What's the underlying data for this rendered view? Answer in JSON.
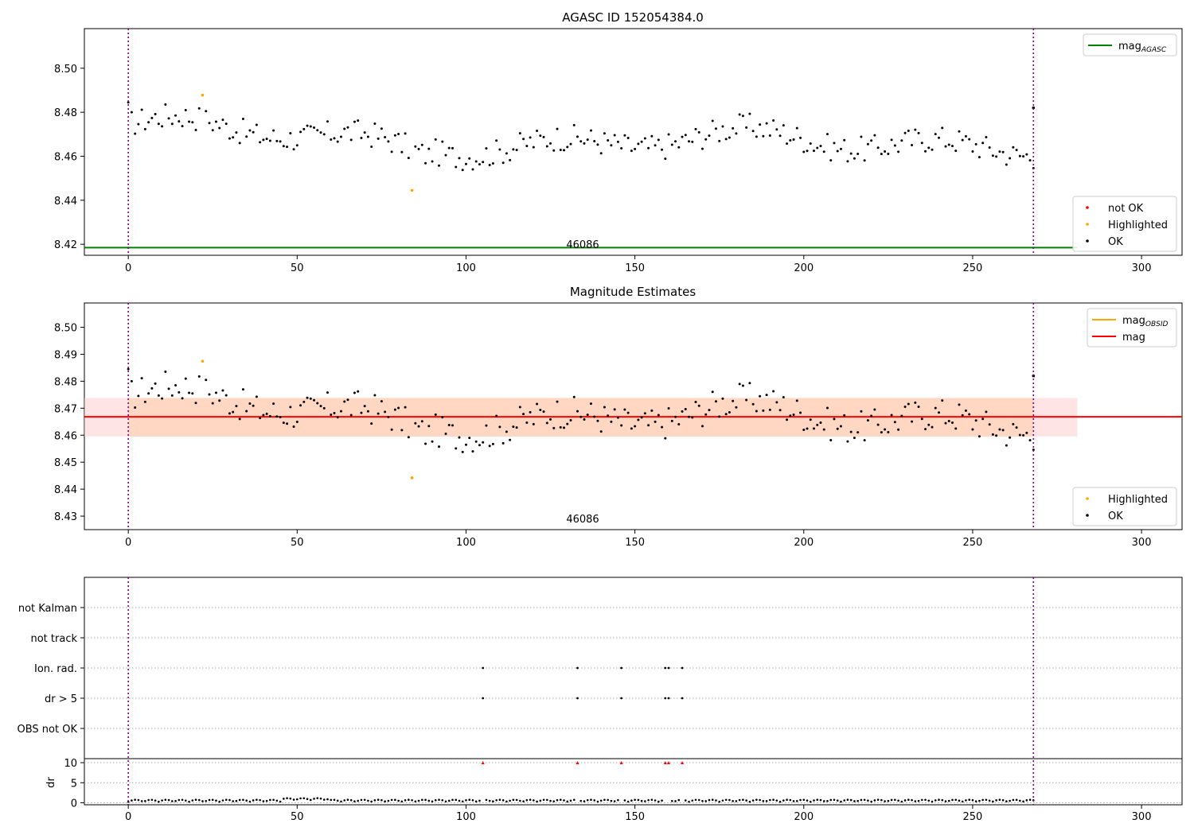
{
  "chart_data": [
    {
      "type": "scatter",
      "title": "AGASC ID 152054384.0",
      "obsid_label": "46086",
      "xlim": [
        -13,
        312
      ],
      "ylim": [
        8.415,
        8.518
      ],
      "xticks": [
        0,
        50,
        100,
        150,
        200,
        250,
        300
      ],
      "yticks": [
        8.42,
        8.44,
        8.46,
        8.48,
        8.5
      ],
      "ytick_labels": [
        "8.42",
        "8.44",
        "8.46",
        "8.48",
        "8.50"
      ],
      "xtick_labels": [
        "0",
        "50",
        "100",
        "150",
        "200",
        "250",
        "300"
      ],
      "vlines": [
        0,
        268
      ],
      "hline": {
        "name": "mag_AGASC",
        "value": 8.4185,
        "color": "#008000"
      },
      "legend_top": [
        {
          "label": "mag",
          "sub": "AGASC",
          "color": "#008000",
          "marker": "line"
        }
      ],
      "legend_bottom": [
        {
          "label": "not OK",
          "color": "#ff0000",
          "marker": "dot"
        },
        {
          "label": "Highlighted",
          "color": "#ffa500",
          "marker": "dot"
        },
        {
          "label": "OK",
          "color": "#000000",
          "marker": "dot"
        }
      ],
      "series": [
        {
          "name": "OK",
          "color": "#000000"
        },
        {
          "name": "Highlighted",
          "color": "#ffa500",
          "points": [
            [
              22,
              8.4878
            ],
            [
              84,
              8.4445
            ]
          ]
        }
      ]
    },
    {
      "type": "scatter",
      "title": "Magnitude Estimates",
      "obsid_label": "46086",
      "xlim": [
        -13,
        312
      ],
      "ylim": [
        8.425,
        8.509
      ],
      "xticks": [
        0,
        50,
        100,
        150,
        200,
        250,
        300
      ],
      "yticks": [
        8.43,
        8.44,
        8.45,
        8.46,
        8.47,
        8.48,
        8.49,
        8.5
      ],
      "ytick_labels": [
        "8.43",
        "8.44",
        "8.45",
        "8.46",
        "8.47",
        "8.48",
        "8.49",
        "8.50"
      ],
      "xtick_labels": [
        "0",
        "50",
        "100",
        "150",
        "200",
        "250",
        "300"
      ],
      "vlines": [
        0,
        268
      ],
      "mag_line": {
        "value": 8.4668,
        "color": "#ff0000"
      },
      "band": {
        "low": 8.4595,
        "high": 8.4738,
        "x_end": 281
      },
      "legend_top": [
        {
          "label": "mag",
          "sub": "OBSID",
          "color": "#ffa500",
          "marker": "line"
        },
        {
          "label": "mag",
          "sub": "",
          "color": "#ff0000",
          "marker": "line"
        }
      ],
      "legend_bottom": [
        {
          "label": "Highlighted",
          "color": "#ffa500",
          "marker": "dot"
        },
        {
          "label": "OK",
          "color": "#000000",
          "marker": "dot"
        }
      ],
      "series": [
        {
          "name": "OK",
          "color": "#000000"
        },
        {
          "name": "Highlighted",
          "color": "#ffa500",
          "points": [
            [
              22,
              8.4874
            ],
            [
              84,
              8.4442
            ]
          ]
        }
      ]
    },
    {
      "type": "scatter",
      "title": "",
      "xlim": [
        -13,
        312
      ],
      "xticks": [
        0,
        50,
        100,
        150,
        200,
        250,
        300
      ],
      "xtick_labels": [
        "0",
        "50",
        "100",
        "150",
        "200",
        "250",
        "300"
      ],
      "vlines": [
        0,
        268
      ],
      "categories": [
        "not Kalman",
        "not track",
        "Ion. rad.",
        "dr > 5",
        "OBS not OK"
      ],
      "flag_points": {
        "Ion. rad.": [
          105,
          133,
          146,
          159,
          160,
          164
        ],
        "dr > 5": [
          105,
          133,
          146,
          159,
          160,
          164
        ]
      },
      "dr_ylabel": "dr",
      "dr_yticks": [
        0,
        5,
        10
      ],
      "dr_ytick_labels": [
        "0",
        "5",
        "10"
      ],
      "dr_ylim": [
        -0.5,
        11
      ],
      "dr_clipped": [
        105,
        133,
        146,
        159,
        160,
        164
      ]
    }
  ]
}
